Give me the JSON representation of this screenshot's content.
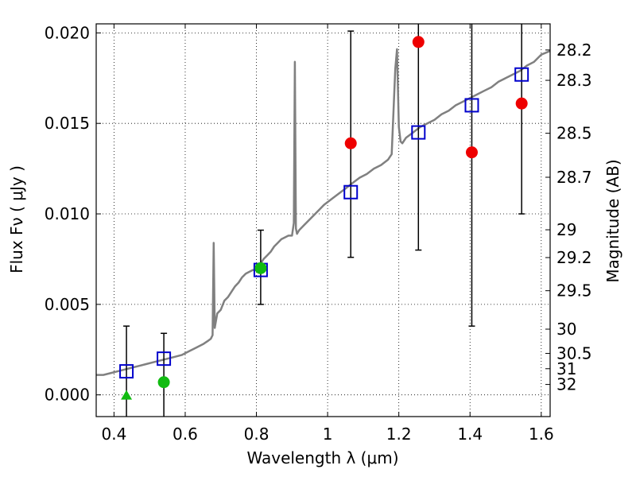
{
  "chart_data": {
    "type": "scatter",
    "xlabel": "Wavelength  λ (μm)",
    "ylabel": "Flux  Fν  ( μJy )",
    "ylabel_right": "Magnitude (AB)",
    "xlim": [
      0.35,
      1.625
    ],
    "ylim": [
      -0.0012,
      0.0205
    ],
    "grid": true,
    "x_ticks": [
      {
        "value": 0.4,
        "label": "0.4"
      },
      {
        "value": 0.6,
        "label": "0.6"
      },
      {
        "value": 0.8,
        "label": "0.8"
      },
      {
        "value": 1.0,
        "label": "1"
      },
      {
        "value": 1.2,
        "label": "1.2"
      },
      {
        "value": 1.4,
        "label": "1.4"
      },
      {
        "value": 1.6,
        "label": "1.6"
      }
    ],
    "y_ticks": [
      {
        "value": 0.0,
        "label": "0.000"
      },
      {
        "value": 0.005,
        "label": "0.005"
      },
      {
        "value": 0.01,
        "label": "0.010"
      },
      {
        "value": 0.015,
        "label": "0.015"
      },
      {
        "value": 0.02,
        "label": "0.020"
      }
    ],
    "right_ticks": [
      {
        "mag": 28.2,
        "label": "28.2"
      },
      {
        "mag": 28.3,
        "label": "28.3"
      },
      {
        "mag": 28.5,
        "label": "28.5"
      },
      {
        "mag": 28.7,
        "label": "28.7"
      },
      {
        "mag": 29,
        "label": "29"
      },
      {
        "mag": 29.2,
        "label": "29.2"
      },
      {
        "mag": 29.5,
        "label": "29.5"
      },
      {
        "mag": 30,
        "label": "30"
      },
      {
        "mag": 30.5,
        "label": "30.5"
      },
      {
        "mag": 31,
        "label": "31"
      },
      {
        "mag": 32,
        "label": "32"
      }
    ],
    "series": [
      {
        "kind": "model_spectrum",
        "color": "#808080",
        "x": [
          0.35,
          0.37,
          0.39,
          0.41,
          0.43,
          0.45,
          0.47,
          0.49,
          0.51,
          0.53,
          0.55,
          0.57,
          0.59,
          0.61,
          0.63,
          0.65,
          0.665,
          0.672,
          0.677,
          0.68,
          0.683,
          0.69,
          0.7,
          0.71,
          0.72,
          0.73,
          0.74,
          0.75,
          0.76,
          0.77,
          0.78,
          0.79,
          0.8,
          0.81,
          0.82,
          0.83,
          0.84,
          0.85,
          0.86,
          0.87,
          0.88,
          0.89,
          0.9,
          0.905,
          0.908,
          0.911,
          0.914,
          0.92,
          0.93,
          0.95,
          0.97,
          0.99,
          1.01,
          1.03,
          1.05,
          1.07,
          1.09,
          1.11,
          1.13,
          1.15,
          1.17,
          1.18,
          1.19,
          1.195,
          1.2,
          1.205,
          1.21,
          1.22,
          1.24,
          1.26,
          1.28,
          1.3,
          1.32,
          1.34,
          1.36,
          1.38,
          1.4,
          1.42,
          1.44,
          1.46,
          1.48,
          1.5,
          1.52,
          1.54,
          1.56,
          1.58,
          1.6,
          1.625
        ],
        "y": [
          0.0011,
          0.0011,
          0.0012,
          0.0013,
          0.0014,
          0.0015,
          0.0016,
          0.0017,
          0.0018,
          0.0019,
          0.002,
          0.0021,
          0.0022,
          0.0024,
          0.0026,
          0.0028,
          0.003,
          0.0031,
          0.0033,
          0.0084,
          0.0037,
          0.0045,
          0.0047,
          0.0052,
          0.0054,
          0.0057,
          0.006,
          0.0062,
          0.0065,
          0.0067,
          0.0068,
          0.0069,
          0.0069,
          0.0072,
          0.0075,
          0.0077,
          0.0079,
          0.0082,
          0.0084,
          0.0086,
          0.0087,
          0.0088,
          0.0088,
          0.0095,
          0.0184,
          0.0092,
          0.0089,
          0.0091,
          0.0093,
          0.0097,
          0.0101,
          0.0105,
          0.0108,
          0.0111,
          0.0114,
          0.0117,
          0.012,
          0.0122,
          0.0125,
          0.0127,
          0.013,
          0.0133,
          0.018,
          0.0191,
          0.0148,
          0.014,
          0.0139,
          0.0142,
          0.0145,
          0.0148,
          0.015,
          0.0152,
          0.0155,
          0.0157,
          0.016,
          0.0162,
          0.0164,
          0.0166,
          0.0168,
          0.017,
          0.0173,
          0.0175,
          0.0177,
          0.0179,
          0.0182,
          0.0184,
          0.0188,
          0.019
        ]
      },
      {
        "kind": "model_photometry",
        "marker": "open-square",
        "color": "#0000cc",
        "x": [
          0.435,
          0.54,
          0.812,
          1.065,
          1.255,
          1.405,
          1.545
        ],
        "y": [
          0.0013,
          0.002,
          0.0069,
          0.0112,
          0.0145,
          0.016,
          0.0177
        ]
      },
      {
        "kind": "observed_flux",
        "color": "#000000",
        "x": [
          0.435,
          0.54,
          0.812,
          1.065,
          1.255,
          1.405,
          1.545
        ],
        "y": [
          0.0013,
          0.002,
          0.0069,
          0.0112,
          0.0145,
          0.016,
          0.0177
        ],
        "err_low": [
          -0.0012,
          -0.0012,
          0.005,
          0.0076,
          0.008,
          0.0038,
          0.01
        ],
        "err_high": [
          0.0038,
          0.0034,
          0.0091,
          0.0201,
          0.0205,
          0.0205,
          0.0205
        ]
      },
      {
        "kind": "upper_limit",
        "marker": "triangle",
        "color": "#11bb11",
        "x": [
          0.435
        ],
        "y": [
          0.0
        ]
      },
      {
        "kind": "detection",
        "marker": "filled-circle",
        "color": "#11bb11",
        "x": [
          0.54,
          0.812
        ],
        "y": [
          0.0007,
          0.007
        ]
      },
      {
        "kind": "detection",
        "marker": "filled-circle",
        "color": "#ee0000",
        "x": [
          1.065,
          1.255,
          1.405,
          1.545
        ],
        "y": [
          0.0139,
          0.0195,
          0.0134,
          0.0161
        ]
      }
    ]
  }
}
